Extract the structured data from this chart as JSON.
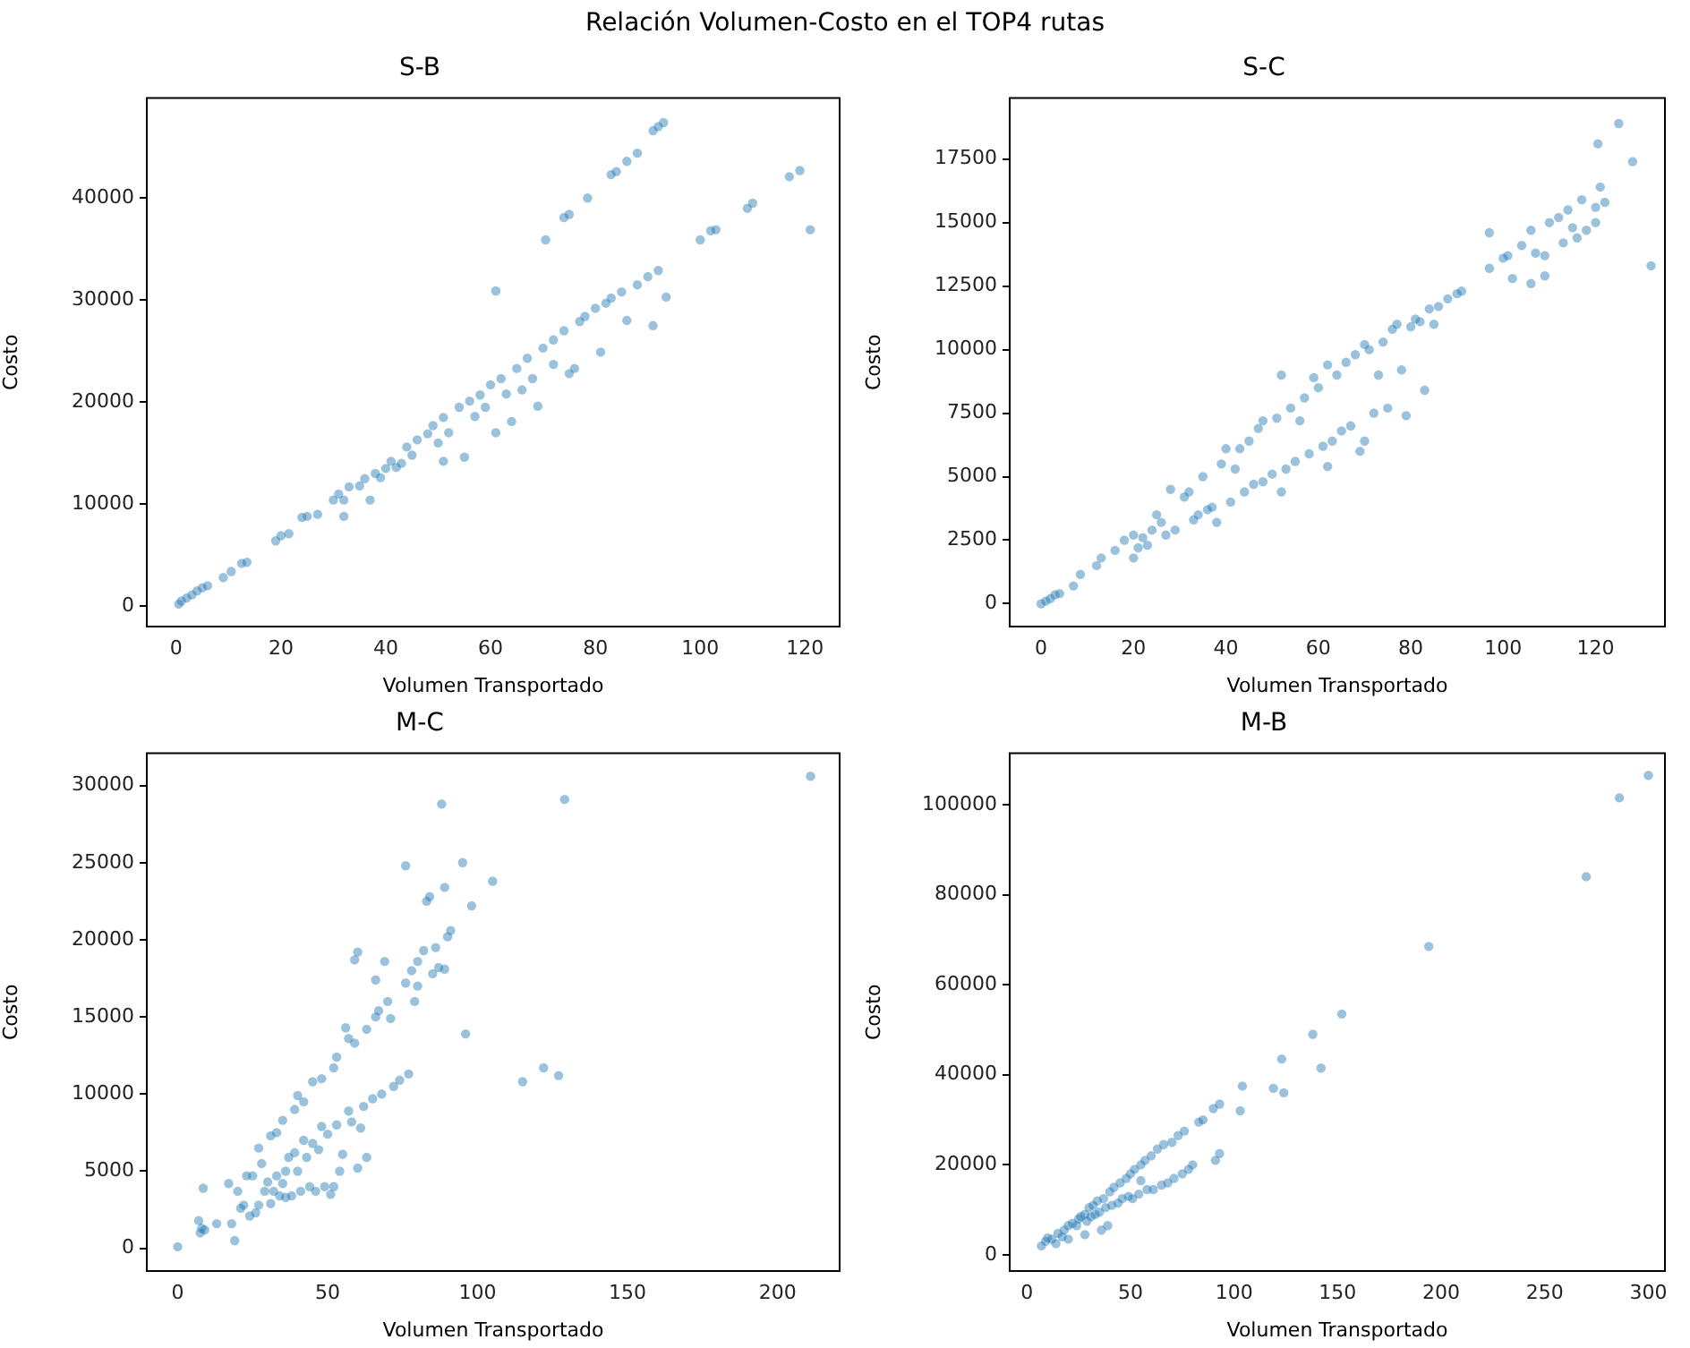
{
  "chart_data": [
    {
      "type": "scatter",
      "title": "S-B",
      "xlabel": "Volumen Transportado",
      "ylabel": "Costo",
      "marker": "circle",
      "annotations": [
        "Relación Volumen-Costo en el TOP4 rutas"
      ],
      "xlim": [
        -5.6,
        126.6
      ],
      "ylim": [
        -2000,
        49800
      ],
      "xticks": [
        0,
        20,
        40,
        60,
        80,
        100,
        120
      ],
      "yticks": [
        0,
        10000,
        20000,
        30000,
        40000
      ],
      "series": [
        {
          "color": "#1f77b4",
          "x": [
            0.5,
            1,
            2,
            3,
            4,
            5,
            6,
            9,
            10.5,
            12.5,
            13.5,
            19,
            20,
            21.5,
            24,
            25,
            27,
            30,
            31,
            32,
            32,
            33,
            35,
            36,
            37,
            38,
            39,
            40,
            41,
            42,
            43,
            44,
            45,
            46,
            48,
            49,
            50,
            51,
            51,
            52,
            54,
            55,
            56,
            57,
            58,
            59,
            60,
            61,
            62,
            63,
            64,
            65,
            66,
            67,
            68,
            69,
            70,
            72,
            72,
            74,
            75,
            76,
            77,
            78,
            80,
            81,
            82,
            83,
            85,
            86,
            88,
            90,
            91,
            92,
            93.5,
            61,
            70.5,
            74,
            75,
            78.5,
            83,
            84,
            86,
            88,
            91,
            92,
            93,
            100,
            102,
            103,
            109,
            110,
            117,
            119,
            121
          ],
          "values": [
            200,
            500,
            800,
            1100,
            1500,
            1800,
            2000,
            2800,
            3400,
            4200,
            4300,
            6400,
            6900,
            7100,
            8700,
            8800,
            9000,
            10400,
            11000,
            10400,
            8800,
            11700,
            11800,
            12500,
            10400,
            13000,
            12600,
            13500,
            14200,
            13600,
            14000,
            15600,
            14800,
            16300,
            16900,
            17700,
            16000,
            18500,
            14200,
            17000,
            19500,
            14600,
            20100,
            18600,
            20700,
            19500,
            21700,
            17000,
            22300,
            20800,
            18100,
            23300,
            21200,
            24300,
            22300,
            19600,
            25300,
            23700,
            26100,
            27000,
            22800,
            23300,
            27900,
            28400,
            29200,
            24900,
            29700,
            30200,
            30800,
            28000,
            31500,
            32300,
            27500,
            32900,
            30300,
            30900,
            35900,
            38100,
            38400,
            40000,
            42300,
            42600,
            43600,
            44400,
            46600,
            47000,
            47400,
            35900,
            36800,
            36900,
            39000,
            39500,
            42100,
            42700,
            36900
          ]
        }
      ]
    },
    {
      "type": "scatter",
      "title": "S-C",
      "xlabel": "Volumen Transportado",
      "ylabel": "Costo",
      "marker": "circle",
      "xlim": [
        -6.8,
        135
      ],
      "ylim": [
        -900,
        19900
      ],
      "xticks": [
        0,
        20,
        40,
        60,
        80,
        100,
        120
      ],
      "yticks": [
        0,
        2500,
        5000,
        7500,
        10000,
        12500,
        15000,
        17500
      ],
      "series": [
        {
          "color": "#1f77b4",
          "x": [
            0,
            1,
            2,
            3,
            4,
            7,
            8.5,
            12,
            13,
            16,
            18,
            20,
            20,
            21,
            22,
            23,
            24,
            25,
            26,
            27,
            28,
            29,
            31,
            32,
            33,
            34,
            35,
            36,
            37,
            38,
            39,
            40,
            41,
            42,
            43,
            44,
            45,
            46,
            47,
            48,
            48,
            50,
            51,
            52,
            52,
            53,
            54,
            55,
            56,
            57,
            58,
            59,
            60,
            61,
            62,
            62,
            63,
            64,
            65,
            66,
            67,
            68,
            69,
            70,
            70,
            71,
            72,
            73,
            74,
            75,
            76,
            77,
            78,
            79,
            80,
            81,
            82,
            83,
            84,
            85,
            86,
            88,
            90,
            91,
            97,
            97,
            100,
            101,
            102,
            104,
            106,
            106,
            107,
            109,
            109,
            110,
            112,
            113,
            114,
            115,
            116,
            117,
            118,
            120,
            120,
            120.5,
            121,
            122,
            125,
            128,
            132
          ],
          "values": [
            0,
            100,
            200,
            350,
            400,
            700,
            1150,
            1500,
            1800,
            2100,
            2500,
            2700,
            1800,
            2200,
            2600,
            2300,
            2900,
            3500,
            3200,
            2700,
            4500,
            2900,
            4200,
            4400,
            3300,
            3500,
            5000,
            3700,
            3800,
            3200,
            5500,
            6100,
            4000,
            5300,
            6100,
            4400,
            6400,
            4700,
            6900,
            4800,
            7200,
            5100,
            7300,
            9000,
            4400,
            5300,
            7700,
            5600,
            7200,
            8100,
            5900,
            8900,
            8500,
            6200,
            9400,
            5400,
            6400,
            9000,
            6800,
            9500,
            7000,
            9800,
            6000,
            10200,
            6400,
            10000,
            7500,
            9000,
            10300,
            7700,
            10800,
            11000,
            9200,
            7400,
            10900,
            11200,
            11100,
            8400,
            11600,
            11000,
            11700,
            12000,
            12200,
            12300,
            13200,
            14600,
            13600,
            13700,
            12800,
            14100,
            14700,
            12600,
            13800,
            12900,
            13700,
            15000,
            15200,
            14200,
            15500,
            14800,
            14400,
            15900,
            14700,
            15000,
            15600,
            18100,
            16400,
            15800,
            18900,
            17400,
            13300
          ]
        }
      ]
    },
    {
      "type": "scatter",
      "title": "M-C",
      "xlabel": "Volumen Transportado",
      "ylabel": "Costo",
      "marker": "circle",
      "xlim": [
        -10.3,
        220.7
      ],
      "ylim": [
        -1470,
        32090
      ],
      "xticks": [
        0,
        50,
        100,
        150,
        200
      ],
      "yticks": [
        0,
        5000,
        10000,
        15000,
        20000,
        25000,
        30000
      ],
      "series": [
        {
          "color": "#1f77b4",
          "x": [
            0,
            7,
            7.5,
            8,
            8.5,
            9,
            13,
            17,
            18,
            19,
            20,
            21,
            22,
            23,
            24,
            25,
            26,
            27,
            27,
            28,
            29,
            30,
            31,
            31,
            32,
            33,
            33,
            34,
            35,
            35,
            36,
            36,
            37,
            38,
            39,
            39,
            40,
            40,
            41,
            42,
            42,
            43,
            44,
            45,
            45,
            46,
            47,
            48,
            48,
            49,
            50,
            51,
            52,
            52,
            53,
            53,
            54,
            55,
            56,
            57,
            57,
            58,
            59,
            59,
            60,
            60,
            61,
            62,
            63,
            63,
            65,
            66,
            66,
            67,
            68,
            69,
            70,
            71,
            72,
            74,
            76,
            76,
            77,
            78,
            79,
            80,
            80,
            82,
            83,
            84,
            85,
            86,
            87,
            88,
            89,
            89,
            90,
            91,
            95,
            96,
            98,
            105,
            115,
            122,
            127,
            129,
            211
          ],
          "values": [
            100,
            1800,
            1000,
            1300,
            3900,
            1200,
            1600,
            4200,
            1600,
            500,
            3700,
            2600,
            2800,
            4700,
            2100,
            4700,
            2300,
            6500,
            2800,
            5500,
            3700,
            4300,
            7300,
            2900,
            3700,
            4700,
            7500,
            3400,
            8300,
            4200,
            5000,
            3300,
            5900,
            3400,
            9000,
            6200,
            9900,
            5000,
            3700,
            9500,
            7000,
            5900,
            4000,
            6800,
            10800,
            3700,
            6400,
            7900,
            11000,
            4000,
            7400,
            3500,
            11700,
            4000,
            8000,
            12400,
            5000,
            6100,
            14300,
            8900,
            13600,
            8200,
            13300,
            18700,
            19200,
            5200,
            7800,
            9200,
            14200,
            5900,
            9700,
            17400,
            15000,
            15400,
            10000,
            18600,
            16000,
            14900,
            10500,
            10900,
            17200,
            24800,
            11300,
            18000,
            16000,
            18600,
            17000,
            19300,
            22500,
            22800,
            17800,
            19500,
            18200,
            28800,
            18100,
            23400,
            20200,
            20600,
            25000,
            13900,
            22200,
            23800,
            10800,
            11700,
            11200,
            29100,
            30600
          ]
        }
      ]
    },
    {
      "type": "scatter",
      "title": "M-B",
      "xlabel": "Volumen Transportado",
      "ylabel": "Costo",
      "marker": "circle",
      "xlim": [
        -8.3,
        308
      ],
      "ylim": [
        -3580,
        111400
      ],
      "xticks": [
        0,
        50,
        100,
        150,
        200,
        250,
        300
      ],
      "yticks": [
        0,
        20000,
        40000,
        60000,
        80000,
        100000
      ],
      "series": [
        {
          "color": "#1f77b4",
          "x": [
            7,
            9,
            10,
            12,
            14,
            15,
            17,
            18,
            20,
            20,
            22,
            24,
            25,
            26,
            28,
            28,
            29,
            30,
            31,
            32,
            33,
            34,
            35,
            36,
            37,
            38,
            39,
            40,
            41,
            42,
            44,
            45,
            46,
            48,
            49,
            50,
            51,
            52,
            54,
            55,
            55,
            57,
            58,
            60,
            61,
            63,
            65,
            66,
            68,
            70,
            71,
            73,
            75,
            76,
            78,
            80,
            83,
            85,
            90,
            91,
            93,
            93,
            103,
            104,
            119,
            123,
            124,
            138,
            142,
            152,
            194,
            270,
            286,
            300
          ],
          "values": [
            2000,
            3000,
            3800,
            3500,
            2500,
            4800,
            4000,
            5500,
            6500,
            3500,
            7000,
            6500,
            8000,
            8500,
            9000,
            4500,
            7500,
            10500,
            8500,
            11000,
            9000,
            12000,
            9500,
            5500,
            12500,
            10500,
            6500,
            14000,
            11000,
            15000,
            11500,
            16000,
            12500,
            17000,
            13000,
            18000,
            12500,
            19000,
            13500,
            20000,
            16500,
            21000,
            14500,
            22000,
            14500,
            23500,
            15500,
            24500,
            16000,
            25000,
            17000,
            26500,
            18000,
            27500,
            19000,
            20000,
            29500,
            30000,
            32500,
            21000,
            33500,
            22500,
            32000,
            37500,
            37000,
            43500,
            36000,
            49000,
            41500,
            53500,
            68500,
            84000,
            101500,
            106500
          ]
        }
      ]
    }
  ]
}
